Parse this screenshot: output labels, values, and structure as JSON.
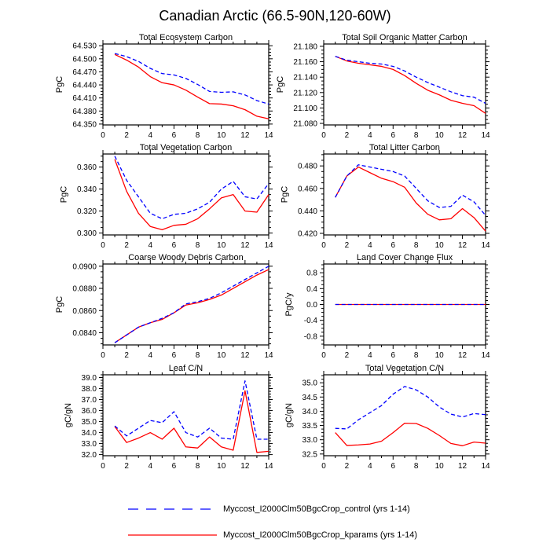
{
  "title": "Canadian Arctic (66.5-90N,120-60W)",
  "colors": {
    "control": "#0000ff",
    "kparams": "#ff0000",
    "axis": "#000000",
    "background": "#ffffff"
  },
  "legend": {
    "position": "bottom",
    "items": [
      {
        "name": "control",
        "label": "Myccost_I2000Clm50BgcCrop_control (yrs 1-14)",
        "color": "#0000ff",
        "line_style": "dashed"
      },
      {
        "name": "kparams",
        "label": "Myccost_I2000Clm50BgcCrop_kparams (yrs 1-14)",
        "color": "#ff0000",
        "line_style": "solid"
      }
    ]
  },
  "chart_data": [
    {
      "type": "line",
      "title": "Total Ecosystem Carbon",
      "ylabel": "PgC",
      "xlim": [
        0,
        14
      ],
      "xticks": [
        0,
        2,
        4,
        6,
        8,
        10,
        12,
        14
      ],
      "grid": false,
      "ylim": [
        64.348,
        64.534
      ],
      "yticks": [
        64.35,
        64.38,
        64.41,
        64.44,
        64.47,
        64.5,
        64.53
      ],
      "ytick_labels": [
        "64.350",
        "64.380",
        "64.410",
        "64.440",
        "64.470",
        "64.500",
        "64.530"
      ],
      "x": [
        1,
        2,
        3,
        4,
        5,
        6,
        7,
        8,
        9,
        10,
        11,
        12,
        13,
        14
      ],
      "series": [
        {
          "name": "Myccost_I2000Clm50BgcCrop_control",
          "color": "#0000ff",
          "line_style": "dashed",
          "values": [
            64.512,
            64.505,
            64.494,
            64.478,
            64.466,
            64.463,
            64.455,
            64.441,
            64.425,
            64.423,
            64.424,
            64.417,
            64.404,
            64.396
          ]
        },
        {
          "name": "Myccost_I2000Clm50BgcCrop_kparams",
          "color": "#ff0000",
          "line_style": "solid",
          "values": [
            64.51,
            64.497,
            64.481,
            64.459,
            64.445,
            64.44,
            64.428,
            64.412,
            64.397,
            64.396,
            64.392,
            64.383,
            64.368,
            64.362
          ]
        }
      ]
    },
    {
      "type": "line",
      "title": "Total Soil Organic Matter Carbon",
      "ylabel": "PgC",
      "xlim": [
        0,
        14
      ],
      "xticks": [
        0,
        2,
        4,
        6,
        8,
        10,
        12,
        14
      ],
      "grid": false,
      "ylim": [
        21.078,
        21.183
      ],
      "yticks": [
        21.08,
        21.1,
        21.12,
        21.14,
        21.16,
        21.18
      ],
      "ytick_labels": [
        "21.080",
        "21.100",
        "21.120",
        "21.140",
        "21.160",
        "21.180"
      ],
      "x": [
        1,
        2,
        3,
        4,
        5,
        6,
        7,
        8,
        9,
        10,
        11,
        12,
        13,
        14
      ],
      "series": [
        {
          "name": "Myccost_I2000Clm50BgcCrop_control",
          "color": "#0000ff",
          "line_style": "dashed",
          "values": [
            21.167,
            21.162,
            21.16,
            21.158,
            21.157,
            21.154,
            21.148,
            21.14,
            21.133,
            21.127,
            21.121,
            21.116,
            21.114,
            21.106
          ]
        },
        {
          "name": "Myccost_I2000Clm50BgcCrop_kparams",
          "color": "#ff0000",
          "line_style": "solid",
          "values": [
            21.167,
            21.161,
            21.158,
            21.156,
            21.154,
            21.15,
            21.142,
            21.132,
            21.123,
            21.117,
            21.11,
            21.106,
            21.103,
            21.093
          ]
        }
      ]
    },
    {
      "type": "line",
      "title": "Total Vegetation Carbon",
      "ylabel": "PgC",
      "xlim": [
        0,
        14
      ],
      "xticks": [
        0,
        2,
        4,
        6,
        8,
        10,
        12,
        14
      ],
      "grid": false,
      "ylim": [
        0.2983,
        0.3719
      ],
      "yticks": [
        0.3,
        0.32,
        0.34,
        0.36
      ],
      "ytick_labels": [
        "0.300",
        "0.320",
        "0.340",
        "0.360"
      ],
      "x": [
        1,
        2,
        3,
        4,
        5,
        6,
        7,
        8,
        9,
        10,
        11,
        12,
        13,
        14
      ],
      "series": [
        {
          "name": "Myccost_I2000Clm50BgcCrop_control",
          "color": "#0000ff",
          "line_style": "dashed",
          "values": [
            0.37,
            0.348,
            0.333,
            0.318,
            0.313,
            0.317,
            0.318,
            0.322,
            0.328,
            0.34,
            0.347,
            0.333,
            0.331,
            0.345
          ]
        },
        {
          "name": "Myccost_I2000Clm50BgcCrop_kparams",
          "color": "#ff0000",
          "line_style": "solid",
          "values": [
            0.367,
            0.338,
            0.318,
            0.306,
            0.303,
            0.307,
            0.308,
            0.313,
            0.322,
            0.332,
            0.335,
            0.32,
            0.319,
            0.335
          ]
        }
      ]
    },
    {
      "type": "line",
      "title": "Total Litter Carbon",
      "ylabel": "PgC",
      "xlim": [
        0,
        14
      ],
      "xticks": [
        0,
        2,
        4,
        6,
        8,
        10,
        12,
        14
      ],
      "grid": false,
      "ylim": [
        0.4186,
        0.4906
      ],
      "yticks": [
        0.42,
        0.44,
        0.46,
        0.48
      ],
      "ytick_labels": [
        "0.420",
        "0.440",
        "0.460",
        "0.480"
      ],
      "x": [
        1,
        2,
        3,
        4,
        5,
        6,
        7,
        8,
        9,
        10,
        11,
        12,
        13,
        14
      ],
      "series": [
        {
          "name": "Myccost_I2000Clm50BgcCrop_control",
          "color": "#0000ff",
          "line_style": "dashed",
          "values": [
            0.452,
            0.471,
            0.481,
            0.479,
            0.477,
            0.475,
            0.471,
            0.46,
            0.449,
            0.443,
            0.444,
            0.454,
            0.448,
            0.436
          ]
        },
        {
          "name": "Myccost_I2000Clm50BgcCrop_kparams",
          "color": "#ff0000",
          "line_style": "solid",
          "values": [
            0.452,
            0.471,
            0.479,
            0.474,
            0.469,
            0.466,
            0.461,
            0.447,
            0.437,
            0.432,
            0.433,
            0.442,
            0.434,
            0.422
          ]
        }
      ]
    },
    {
      "type": "line",
      "title": "Coarse Woody Debris Carbon",
      "ylabel": "PgC",
      "xlim": [
        0,
        14
      ],
      "xticks": [
        0,
        2,
        4,
        6,
        8,
        10,
        12,
        14
      ],
      "grid": false,
      "ylim": [
        0.0829,
        0.0902
      ],
      "yticks": [
        0.084,
        0.086,
        0.088,
        0.09
      ],
      "ytick_labels": [
        "0.0840",
        "0.0860",
        "0.0880",
        "0.0900"
      ],
      "x": [
        1,
        2,
        3,
        4,
        5,
        6,
        7,
        8,
        9,
        10,
        11,
        12,
        13,
        14
      ],
      "series": [
        {
          "name": "Myccost_I2000Clm50BgcCrop_control",
          "color": "#0000ff",
          "line_style": "dashed",
          "values": [
            0.0831,
            0.0838,
            0.0845,
            0.0849,
            0.0853,
            0.0858,
            0.0866,
            0.0868,
            0.0871,
            0.0876,
            0.0882,
            0.0888,
            0.0894,
            0.09
          ]
        },
        {
          "name": "Myccost_I2000Clm50BgcCrop_kparams",
          "color": "#ff0000",
          "line_style": "solid",
          "values": [
            0.0831,
            0.0838,
            0.0845,
            0.0849,
            0.0852,
            0.0858,
            0.0865,
            0.0867,
            0.087,
            0.0874,
            0.088,
            0.0886,
            0.0892,
            0.0897
          ]
        }
      ]
    },
    {
      "type": "line",
      "title": "Land Cover Change Flux",
      "ylabel": "PgC/y",
      "xlim": [
        0,
        14
      ],
      "xticks": [
        0,
        2,
        4,
        6,
        8,
        10,
        12,
        14
      ],
      "grid": false,
      "ylim": [
        -1.02,
        1.02
      ],
      "yticks": [
        -0.8,
        -0.4,
        0.0,
        0.4,
        0.8
      ],
      "ytick_labels": [
        "-0.8",
        "-0.4",
        "0.0",
        "0.4",
        "0.8"
      ],
      "x": [
        1,
        2,
        3,
        4,
        5,
        6,
        7,
        8,
        9,
        10,
        11,
        12,
        13,
        14
      ],
      "series": [
        {
          "name": "Myccost_I2000Clm50BgcCrop_control",
          "color": "#0000ff",
          "line_style": "dashed",
          "values": [
            0.0,
            0.0,
            0.0,
            0.0,
            0.0,
            0.0,
            0.0,
            0.0,
            0.0,
            0.0,
            0.0,
            0.0,
            0.0,
            0.0
          ]
        },
        {
          "name": "Myccost_I2000Clm50BgcCrop_kparams",
          "color": "#ff0000",
          "line_style": "solid",
          "values": [
            0.0,
            0.0,
            0.0,
            0.0,
            0.0,
            0.0,
            0.0,
            0.0,
            0.0,
            0.0,
            0.0,
            0.0,
            0.0,
            0.0
          ]
        }
      ]
    },
    {
      "type": "line",
      "title": "Leaf C/N",
      "ylabel": "gC/gN",
      "xlim": [
        0,
        14
      ],
      "xticks": [
        0,
        2,
        4,
        6,
        8,
        10,
        12,
        14
      ],
      "grid": false,
      "ylim": [
        31.9,
        39.25
      ],
      "yticks": [
        32.0,
        33.0,
        34.0,
        35.0,
        36.0,
        37.0,
        38.0,
        39.0
      ],
      "ytick_labels": [
        "32.0",
        "33.0",
        "34.0",
        "35.0",
        "36.0",
        "37.0",
        "38.0",
        "39.0"
      ],
      "x": [
        1,
        2,
        3,
        4,
        5,
        6,
        7,
        8,
        9,
        10,
        11,
        12,
        13,
        14
      ],
      "series": [
        {
          "name": "Myccost_I2000Clm50BgcCrop_control",
          "color": "#0000ff",
          "line_style": "dashed",
          "values": [
            34.6,
            33.7,
            34.4,
            35.1,
            34.9,
            35.9,
            34.0,
            33.6,
            34.4,
            33.5,
            33.4,
            38.7,
            33.4,
            33.4
          ]
        },
        {
          "name": "Myccost_I2000Clm50BgcCrop_kparams",
          "color": "#ff0000",
          "line_style": "solid",
          "values": [
            34.55,
            33.1,
            33.5,
            34.0,
            33.4,
            34.4,
            32.7,
            32.6,
            33.6,
            32.7,
            32.4,
            37.8,
            32.2,
            32.3
          ]
        }
      ]
    },
    {
      "type": "line",
      "title": "Total Vegetation C/N",
      "ylabel": "gC/gN",
      "xlim": [
        0,
        14
      ],
      "xticks": [
        0,
        2,
        4,
        6,
        8,
        10,
        12,
        14
      ],
      "grid": false,
      "ylim": [
        32.44,
        35.28
      ],
      "yticks": [
        32.5,
        33.0,
        33.5,
        34.0,
        34.5,
        35.0
      ],
      "ytick_labels": [
        "32.5",
        "33.0",
        "33.5",
        "34.0",
        "34.5",
        "35.0"
      ],
      "x": [
        1,
        2,
        3,
        4,
        5,
        6,
        7,
        8,
        9,
        10,
        11,
        12,
        13,
        14
      ],
      "series": [
        {
          "name": "Myccost_I2000Clm50BgcCrop_control",
          "color": "#0000ff",
          "line_style": "dashed",
          "values": [
            33.4,
            33.38,
            33.7,
            33.95,
            34.2,
            34.6,
            34.87,
            34.75,
            34.5,
            34.15,
            33.9,
            33.8,
            33.92,
            33.88
          ]
        },
        {
          "name": "Myccost_I2000Clm50BgcCrop_kparams",
          "color": "#ff0000",
          "line_style": "solid",
          "values": [
            33.25,
            32.8,
            32.82,
            32.85,
            32.95,
            33.25,
            33.58,
            33.57,
            33.4,
            33.15,
            32.87,
            32.79,
            32.92,
            32.88
          ]
        }
      ]
    }
  ]
}
